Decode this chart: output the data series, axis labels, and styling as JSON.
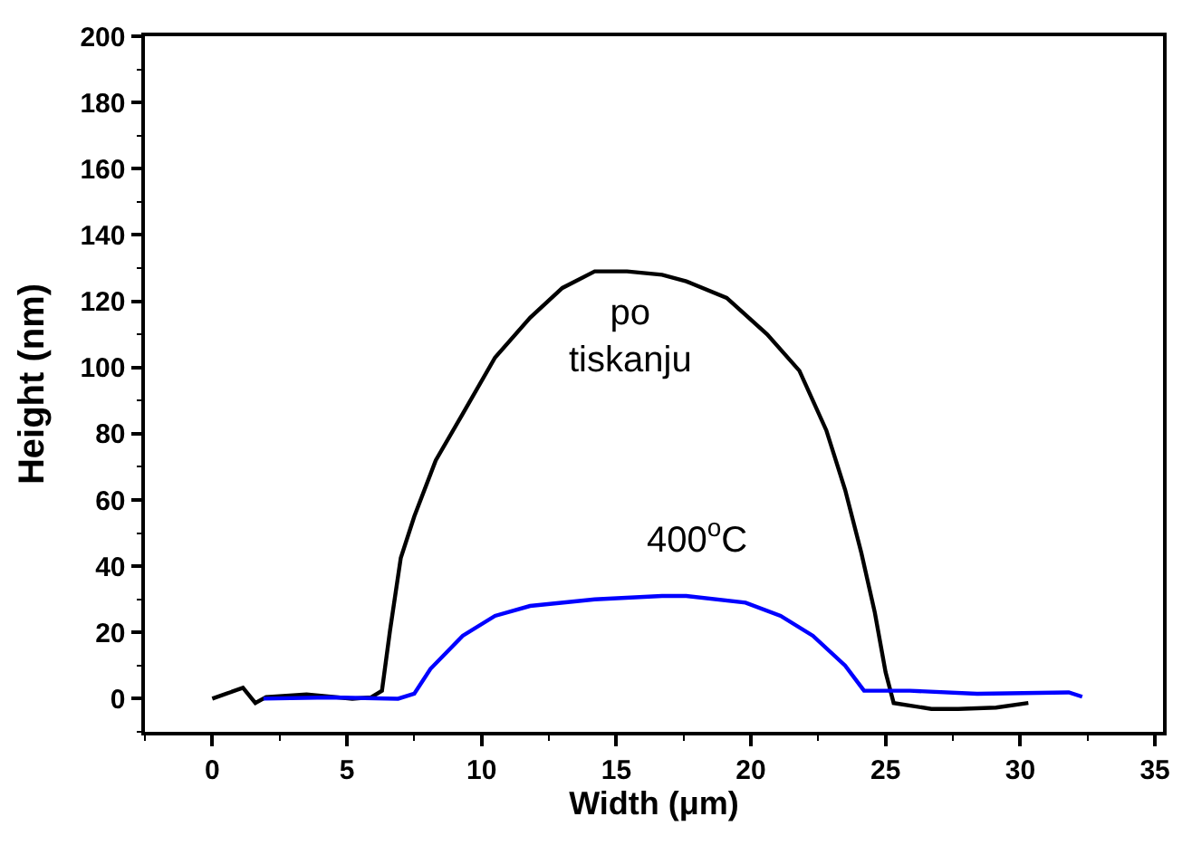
{
  "chart_data": {
    "type": "line",
    "xlabel": "Width (μm)",
    "ylabel": "Height (nm)",
    "xlim": [
      -2.5,
      35.3
    ],
    "xticks": [
      0,
      5,
      10,
      15,
      20,
      25,
      30,
      35
    ],
    "ylim": [
      -10,
      200
    ],
    "yticks": [
      0,
      20,
      40,
      60,
      80,
      100,
      120,
      140,
      160,
      180,
      200
    ],
    "legend": false,
    "marker": "none",
    "line_style": "solid",
    "series": [
      {
        "name": "po\ntiskanju",
        "color": "#000000",
        "x": [
          0,
          1.14,
          1.6,
          2.0,
          3.5,
          5.2,
          5.9,
          6.3,
          6.6,
          7.0,
          7.5,
          8.3,
          9.3,
          10.5,
          11.8,
          13.0,
          14.2,
          15.4,
          16.7,
          17.6,
          19.1,
          20.6,
          21.8,
          22.8,
          23.5,
          24.1,
          24.6,
          25.0,
          25.3,
          26.7,
          27.7,
          29.1,
          30.3
        ],
        "values": [
          0,
          3.3,
          -1.3,
          0.5,
          1.3,
          0,
          0.4,
          2.4,
          20.6,
          42.5,
          55,
          72,
          86,
          103,
          115,
          124,
          129,
          129,
          128,
          126,
          121,
          110,
          99,
          81,
          63,
          44,
          26,
          8,
          -1.3,
          -3.1,
          -3.1,
          -2.7,
          -1.3
        ]
      },
      {
        "name": "400$^{o}$C",
        "color": "#0000ff",
        "x": [
          1.9,
          4.4,
          6.9,
          7.5,
          8.1,
          9.3,
          10.5,
          11.8,
          14.2,
          16.7,
          17.6,
          19.8,
          21.1,
          22.3,
          23.5,
          24.2,
          25.9,
          28.4,
          31.8,
          32.3
        ],
        "values": [
          0,
          0.4,
          0,
          1.5,
          9,
          19,
          25,
          28,
          30,
          31,
          31,
          29,
          25,
          19,
          10,
          2.4,
          2.4,
          1.5,
          1.9,
          0.6
        ]
      }
    ]
  }
}
